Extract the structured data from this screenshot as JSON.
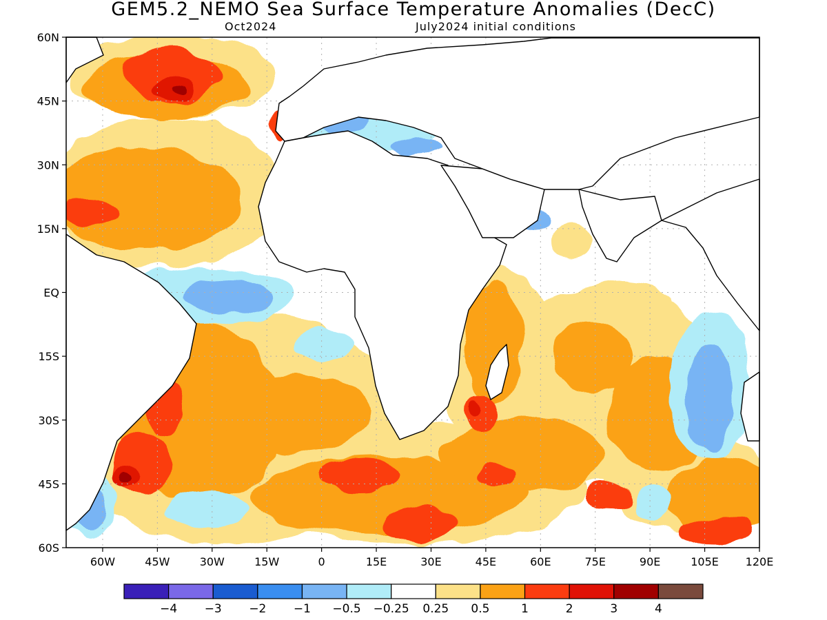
{
  "title": "GEM5.2_NEMO Sea Surface Temperature Anomalies (DecC)",
  "subtitle_left": "Oct2024",
  "subtitle_right": "July2024 initial conditions",
  "axes": {
    "lat_labels": [
      "60N",
      "45N",
      "30N",
      "15N",
      "EQ",
      "15S",
      "30S",
      "45S",
      "60S"
    ],
    "lat_values": [
      60,
      45,
      30,
      15,
      0,
      -15,
      -30,
      -45,
      -60
    ],
    "lon_labels": [
      "60W",
      "45W",
      "30W",
      "15W",
      "0",
      "15E",
      "30E",
      "45E",
      "60E",
      "75E",
      "90E",
      "105E",
      "120E"
    ],
    "lon_values": [
      -60,
      -45,
      -30,
      -15,
      0,
      15,
      30,
      45,
      60,
      75,
      90,
      105,
      120
    ],
    "lon_range": [
      -70,
      120
    ],
    "lat_range": [
      -60,
      60
    ]
  },
  "colorbar": {
    "colors": [
      "#3a20b8",
      "#7a68e8",
      "#1a5cd0",
      "#3a8ef0",
      "#78b4f4",
      "#b0ecf8",
      "#ffffff",
      "#fce188",
      "#fba215",
      "#fb3c10",
      "#e01206",
      "#a00000",
      "#7a4a3c"
    ],
    "labels": [
      "−4",
      "−3",
      "−2",
      "−1",
      "−0.5",
      "−0.25",
      "0.25",
      "0.5",
      "1",
      "2",
      "3",
      "4"
    ]
  },
  "colors": {
    "plus05": "#fce188",
    "plus1": "#fba215",
    "plus2": "#fb3c10",
    "plus3": "#e01206",
    "plus4": "#a00000",
    "minus025": "#b0ecf8",
    "minus05": "#78b4f4",
    "minus1": "#3a8ef0",
    "grid": "#b0b0b0",
    "coast": "#000000"
  }
}
